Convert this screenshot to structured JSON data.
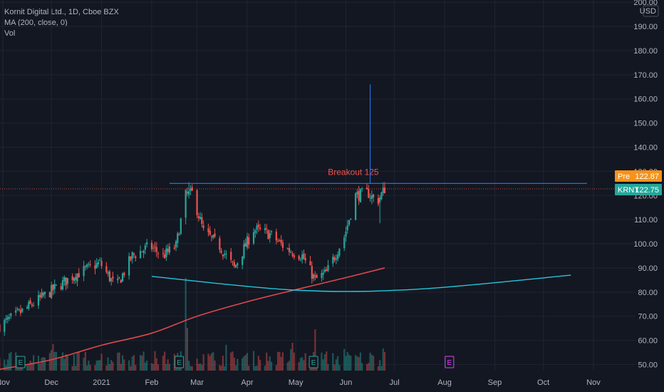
{
  "header": {
    "title": "Kornit Digital Ltd., 1D, Cboe BZX",
    "indicator": "MA (200, close, 0)",
    "volume": "Vol"
  },
  "chart_data": {
    "type": "candlestick",
    "currency": "USD",
    "ylim": [
      47,
      200
    ],
    "y_ticks": [
      50,
      60,
      70,
      80,
      90,
      100,
      110,
      120,
      130,
      140,
      150,
      160,
      170,
      180,
      190,
      200
    ],
    "y_tick_labels": [
      "50.00",
      "60.00",
      "70.00",
      "80.00",
      "90.00",
      "100.00",
      "110.00",
      "120.00",
      "130.00",
      "140.00",
      "150.00",
      "160.00",
      "170.00",
      "180.00",
      "190.00",
      "200.00"
    ],
    "x_ticks": [
      {
        "date": "2020-11-01",
        "label": "Nov"
      },
      {
        "date": "2020-12-01",
        "label": "Dec"
      },
      {
        "date": "2021-01-01",
        "label": "2021"
      },
      {
        "date": "2021-02-01",
        "label": "Feb"
      },
      {
        "date": "2021-03-01",
        "label": "Mar"
      },
      {
        "date": "2021-04-01",
        "label": "Apr"
      },
      {
        "date": "2021-05-01",
        "label": "May"
      },
      {
        "date": "2021-06-01",
        "label": "Jun"
      },
      {
        "date": "2021-07-01",
        "label": "Jul"
      },
      {
        "date": "2021-08-01",
        "label": "Aug"
      },
      {
        "date": "2021-09-01",
        "label": "Sep"
      },
      {
        "date": "2021-10-01",
        "label": "Oct"
      },
      {
        "date": "2021-11-01",
        "label": "Nov"
      }
    ],
    "price_path": [
      [
        "2020-10-30",
        66
      ],
      [
        "2020-11-15",
        73
      ],
      [
        "2020-11-30",
        80
      ],
      [
        "2020-12-15",
        87
      ],
      [
        "2020-12-31",
        92
      ],
      [
        "2021-01-10",
        82
      ],
      [
        "2021-01-20",
        95
      ],
      [
        "2021-01-31",
        99
      ],
      [
        "2021-02-08",
        95
      ],
      [
        "2021-02-16",
        99
      ],
      [
        "2021-02-22",
        120
      ],
      [
        "2021-02-26",
        121
      ],
      [
        "2021-03-05",
        105
      ],
      [
        "2021-03-15",
        99
      ],
      [
        "2021-03-24",
        90
      ],
      [
        "2021-04-05",
        106
      ],
      [
        "2021-04-15",
        104
      ],
      [
        "2021-04-25",
        98
      ],
      [
        "2021-05-05",
        95
      ],
      [
        "2021-05-13",
        85
      ],
      [
        "2021-05-20",
        88
      ],
      [
        "2021-05-31",
        103
      ],
      [
        "2021-06-07",
        120
      ],
      [
        "2021-06-15",
        121
      ],
      [
        "2021-06-20",
        117
      ],
      [
        "2021-06-25",
        122.75
      ]
    ],
    "ma200": [
      [
        "2020-10-30",
        48
      ],
      [
        "2020-12-01",
        52
      ],
      [
        "2021-01-01",
        58
      ],
      [
        "2021-02-01",
        63
      ],
      [
        "2021-03-01",
        70
      ],
      [
        "2021-04-01",
        76
      ],
      [
        "2021-05-01",
        81
      ],
      [
        "2021-06-01",
        86
      ],
      [
        "2021-06-25",
        90
      ]
    ],
    "curve": [
      [
        "2021-02-01",
        86.5
      ],
      [
        "2021-05-01",
        80.8
      ],
      [
        "2021-07-15",
        81.2
      ],
      [
        "2021-10-18",
        87
      ]
    ],
    "breakout": {
      "label": "Breakout 125",
      "value": 125,
      "start": "2021-02-12",
      "end": "2021-10-28"
    },
    "spike": {
      "date": "2021-06-16",
      "high": 166
    },
    "event_markers": [
      {
        "date": "2020-11-12",
        "label": "E"
      },
      {
        "date": "2021-02-18",
        "label": "E"
      },
      {
        "date": "2021-05-12",
        "label": "E"
      },
      {
        "date": "2021-08-04",
        "label": "E"
      }
    ],
    "last_date": "2021-06-25",
    "price_tags": [
      {
        "name": "Pre",
        "value": 122.87,
        "display": "122.87",
        "color": "#f7931a"
      },
      {
        "name": "KRNT",
        "value": 122.75,
        "display": "122.75",
        "color": "#26a69a"
      }
    ],
    "colors": {
      "up": "#26a69a",
      "down": "#ef5350",
      "ma": "#e0474c",
      "curve": "#26c6da",
      "breakout": "#2979ff",
      "label": "#ef5350",
      "event_up": "#26a69a",
      "event_future": "#e040fb"
    }
  }
}
